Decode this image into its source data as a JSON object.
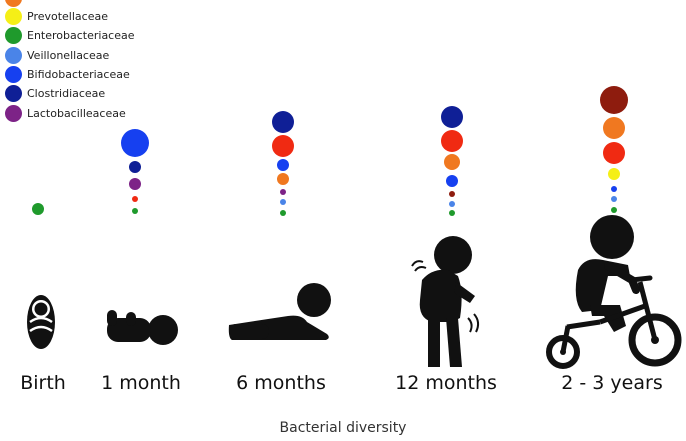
{
  "legend": [
    {
      "label": "",
      "color": "#f07820"
    },
    {
      "label": "Prevotellaceae",
      "color": "#f5ef17"
    },
    {
      "label": "Enterobacteriaceae",
      "color": "#1f9a2c"
    },
    {
      "label": "Veillonellaceae",
      "color": "#4a84e8"
    },
    {
      "label": "Bifidobacteriaceae",
      "color": "#1640f0"
    },
    {
      "label": "Clostridiaceae",
      "color": "#0f1f96"
    },
    {
      "label": "Lactobacilleaceae",
      "color": "#7d2387"
    }
  ],
  "stages": [
    {
      "label": "Birth",
      "figure": "swaddled-baby-icon",
      "dots": [
        [
          "green"
        ]
      ]
    },
    {
      "label": "1 month",
      "figure": "lying-baby-icon",
      "dots": [
        "blue",
        "navy",
        "purple",
        "red",
        "green"
      ]
    },
    {
      "label": "6 months",
      "figure": "crawling-baby-icon",
      "dots": [
        "navy",
        "red",
        "blue",
        "orange",
        "purple",
        "lightblue",
        "green"
      ]
    },
    {
      "label": "12 months",
      "figure": "walking-toddler-icon",
      "dots": [
        "navy",
        "red",
        "orange",
        "blue",
        "darkred",
        "lightblue",
        "green"
      ]
    },
    {
      "label": "2 - 3 years",
      "figure": "child-on-tricycle-icon",
      "dots": [
        "darkred",
        "orange",
        "red",
        "yellow",
        "blue",
        "lightblue",
        "green"
      ]
    }
  ],
  "footer": "Bacterial diversity",
  "colors": {
    "figure": "#111111",
    "red": "#f02a12",
    "darkred": "#8e1c0e"
  }
}
